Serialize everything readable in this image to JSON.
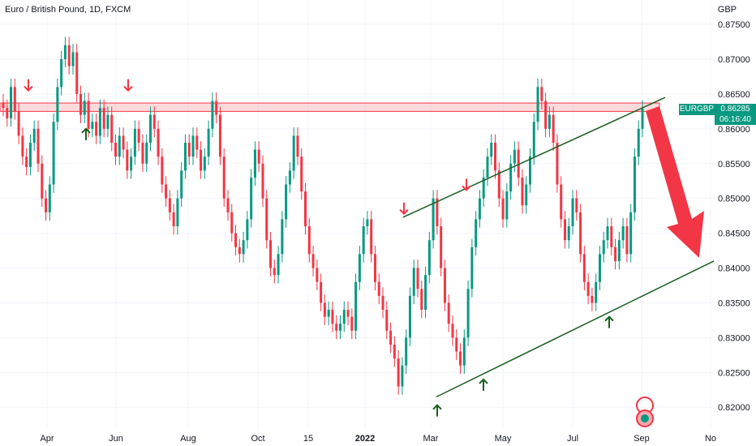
{
  "header": {
    "title": "Euro / British Pound, 1D, FXCM",
    "currency": "GBP"
  },
  "price_tag": {
    "symbol": "EURGBP",
    "price": "0.86285",
    "countdown": "06:16:40"
  },
  "colors": {
    "up": "#089981",
    "down": "#f23645",
    "trend": "#1b5e20",
    "arrow": "#f23645",
    "zone_fill": "rgba(242,54,69,0.18)",
    "zone_border": "#f23645"
  },
  "icons": [
    "down-arrow-icon",
    "up-arrow-icon",
    "big-down-arrow-icon",
    "logo-icon"
  ],
  "chart_data": {
    "type": "candlestick",
    "y_axis": {
      "ticks": [
        "0.87500",
        "0.87000",
        "0.86500",
        "0.86000",
        "0.85500",
        "0.85000",
        "0.84500",
        "0.84000",
        "0.83500",
        "0.83000",
        "0.82500",
        "0.82000"
      ],
      "ylim": [
        0.817,
        0.8785
      ]
    },
    "x_axis": {
      "ticks": [
        "Apr",
        "Jun",
        "Aug",
        "Oct",
        "15",
        "2022",
        "Mar",
        "May",
        "Jul",
        "Sep",
        "No"
      ]
    },
    "resistance_zone": [
      0.8625,
      0.8637
    ],
    "channel": {
      "upper": [
        [
          0.8473,
          0.8645
        ]
      ],
      "lower": [
        [
          0.8215,
          0.841
        ]
      ]
    },
    "series": [
      {
        "values": [
          0.863,
          0.8615,
          0.866,
          0.8625,
          0.859,
          0.856,
          0.8545,
          0.858,
          0.86,
          0.855,
          0.85,
          0.848,
          0.852,
          0.861,
          0.866,
          0.87,
          0.872,
          0.869,
          0.871,
          0.865,
          0.862,
          0.864,
          0.86,
          0.861,
          0.859,
          0.863,
          0.86,
          0.862,
          0.858,
          0.856,
          0.859,
          0.857,
          0.854,
          0.856,
          0.86,
          0.858,
          0.855,
          0.858,
          0.862,
          0.86,
          0.856,
          0.852,
          0.85,
          0.848,
          0.846,
          0.85,
          0.854,
          0.858,
          0.856,
          0.859,
          0.857,
          0.854,
          0.856,
          0.86,
          0.864,
          0.862,
          0.856,
          0.85,
          0.848,
          0.845,
          0.843,
          0.842,
          0.844,
          0.847,
          0.853,
          0.857,
          0.855,
          0.85,
          0.844,
          0.84,
          0.839,
          0.842,
          0.847,
          0.852,
          0.854,
          0.859,
          0.856,
          0.851,
          0.846,
          0.842,
          0.84,
          0.838,
          0.835,
          0.833,
          0.834,
          0.832,
          0.831,
          0.832,
          0.834,
          0.833,
          0.831,
          0.838,
          0.842,
          0.846,
          0.847,
          0.842,
          0.838,
          0.836,
          0.834,
          0.831,
          0.829,
          0.827,
          0.823,
          0.826,
          0.83,
          0.836,
          0.84,
          0.837,
          0.834,
          0.839,
          0.844,
          0.85,
          0.846,
          0.84,
          0.835,
          0.832,
          0.83,
          0.828,
          0.826,
          0.83,
          0.837,
          0.843,
          0.847,
          0.85,
          0.853,
          0.856,
          0.858,
          0.854,
          0.85,
          0.847,
          0.851,
          0.855,
          0.857,
          0.853,
          0.849,
          0.852,
          0.856,
          0.861,
          0.866,
          0.864,
          0.86,
          0.862,
          0.858,
          0.852,
          0.847,
          0.844,
          0.846,
          0.85,
          0.848,
          0.842,
          0.838,
          0.836,
          0.835,
          0.838,
          0.842,
          0.844,
          0.846,
          0.843,
          0.841,
          0.844,
          0.846,
          0.842,
          0.848,
          0.856,
          0.86,
          0.8629
        ]
      }
    ],
    "annotations": {
      "down_arrows": [
        0.8655,
        0.8655,
        0.8478,
        0.8512
      ],
      "up_arrows": [
        0.86,
        0.8203,
        0.824,
        0.833
      ]
    }
  }
}
